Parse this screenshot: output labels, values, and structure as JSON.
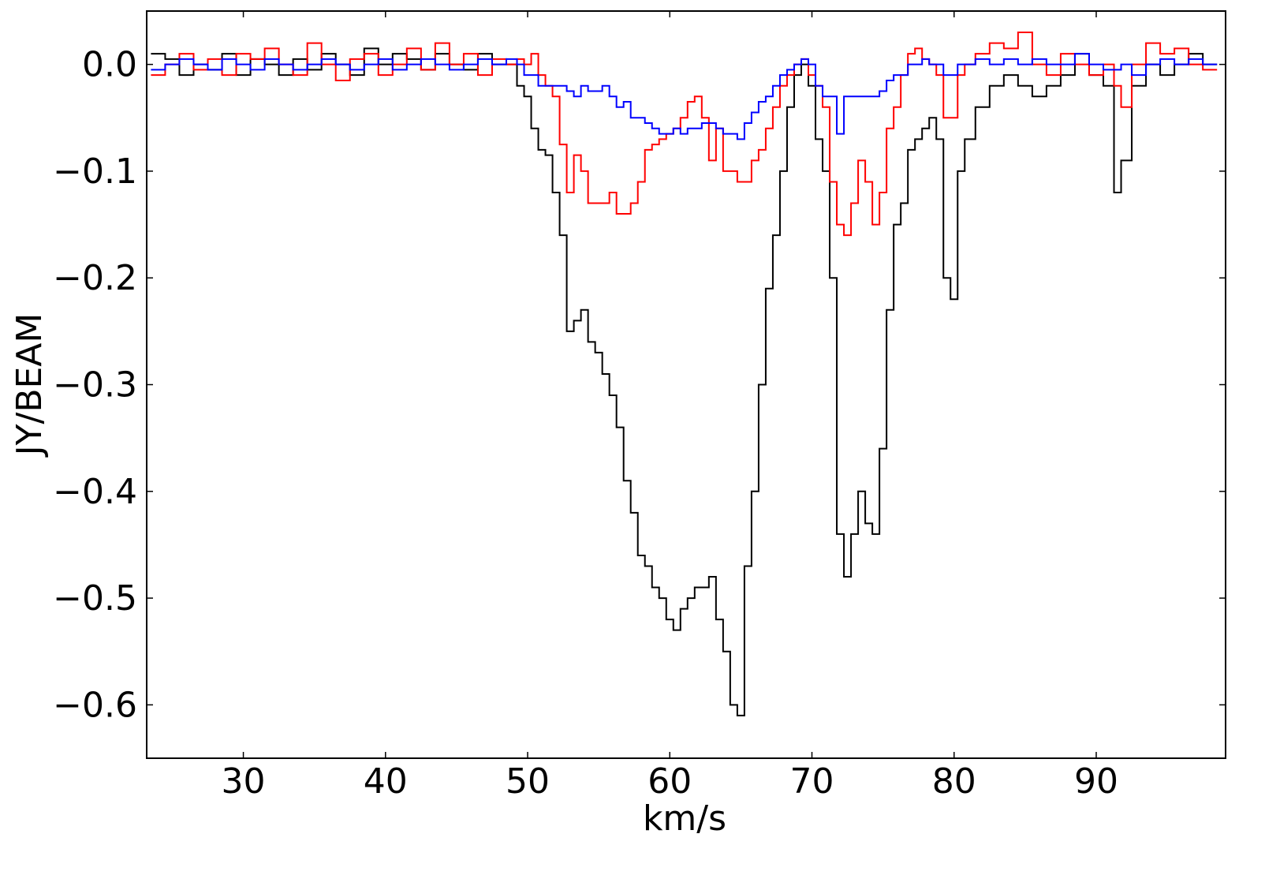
{
  "chart_data": {
    "type": "step",
    "x_label": "km/s",
    "y_label": "JY/BEAM",
    "xlim": [
      23.2,
      99.1
    ],
    "ylim": [
      -0.65,
      0.05
    ],
    "xticks": [
      30,
      40,
      50,
      60,
      70,
      80,
      90
    ],
    "yticks": [
      {
        "value": 0,
        "label": "0.0"
      },
      {
        "value": -0.1,
        "label": "−0.1"
      },
      {
        "value": -0.2,
        "label": "−0.2"
      },
      {
        "value": -0.3,
        "label": "−0.3"
      },
      {
        "value": -0.4,
        "label": "−0.4"
      },
      {
        "value": -0.5,
        "label": "−0.5"
      },
      {
        "value": -0.6,
        "label": "−0.6"
      }
    ],
    "x": [
      24,
      25,
      26,
      27,
      28,
      29,
      30,
      31,
      32,
      33,
      34,
      35,
      36,
      37,
      38,
      39,
      40,
      41,
      42,
      43,
      44,
      45,
      46,
      47,
      48,
      49,
      49.5,
      50,
      50.5,
      51,
      51.5,
      52,
      52.5,
      53,
      53.5,
      54,
      54.5,
      55,
      55.5,
      56,
      56.5,
      57,
      57.5,
      58,
      58.5,
      59,
      59.5,
      60,
      60.5,
      61,
      61.5,
      62,
      62.5,
      63,
      63.5,
      64,
      64.5,
      65,
      65.5,
      66,
      66.5,
      67,
      67.5,
      68,
      68.5,
      69,
      69.5,
      70,
      70.5,
      71,
      71.5,
      72,
      72.5,
      73,
      73.5,
      74,
      74.5,
      75,
      75.5,
      76,
      76.5,
      77,
      77.5,
      78,
      78.5,
      79,
      79.5,
      80,
      80.5,
      81,
      82,
      83,
      84,
      85,
      86,
      87,
      88,
      89,
      90,
      91,
      91.5,
      92,
      93,
      94,
      95,
      96,
      97,
      98
    ],
    "series": [
      {
        "color": "#000000",
        "values": [
          0.01,
          0.005,
          -0.01,
          0.0,
          -0.005,
          0.01,
          -0.01,
          0.005,
          0.0,
          -0.01,
          0.005,
          -0.005,
          0.01,
          0.0,
          -0.01,
          0.015,
          0.0,
          0.01,
          0.005,
          -0.005,
          0.01,
          0.0,
          -0.005,
          0.01,
          0.0,
          0.0,
          -0.02,
          -0.03,
          -0.06,
          -0.08,
          -0.085,
          -0.12,
          -0.16,
          -0.25,
          -0.24,
          -0.23,
          -0.26,
          -0.27,
          -0.29,
          -0.31,
          -0.34,
          -0.39,
          -0.42,
          -0.46,
          -0.47,
          -0.49,
          -0.5,
          -0.52,
          -0.53,
          -0.51,
          -0.5,
          -0.49,
          -0.49,
          -0.48,
          -0.52,
          -0.55,
          -0.6,
          -0.61,
          -0.47,
          -0.4,
          -0.3,
          -0.21,
          -0.16,
          -0.1,
          -0.04,
          -0.01,
          0.0,
          -0.02,
          -0.07,
          -0.1,
          -0.2,
          -0.44,
          -0.48,
          -0.44,
          -0.4,
          -0.43,
          -0.44,
          -0.36,
          -0.23,
          -0.15,
          -0.13,
          -0.08,
          -0.07,
          -0.06,
          -0.05,
          -0.07,
          -0.2,
          -0.22,
          -0.1,
          -0.07,
          -0.04,
          -0.02,
          -0.01,
          -0.02,
          -0.03,
          -0.02,
          -0.01,
          0.01,
          -0.01,
          -0.02,
          -0.12,
          -0.09,
          -0.02,
          0.0,
          -0.01,
          0.0,
          0.01,
          0.0
        ]
      },
      {
        "color": "#ff0000",
        "values": [
          -0.01,
          0.0,
          0.01,
          -0.005,
          0.005,
          -0.01,
          0.01,
          0.005,
          0.015,
          0.0,
          -0.01,
          0.02,
          0.0,
          -0.015,
          0.005,
          0.01,
          -0.01,
          0.0,
          0.015,
          -0.005,
          0.02,
          0.0,
          0.01,
          -0.01,
          0.005,
          0.0,
          0.005,
          0.0,
          0.01,
          -0.01,
          -0.02,
          -0.03,
          -0.075,
          -0.12,
          -0.085,
          -0.1,
          -0.13,
          -0.13,
          -0.13,
          -0.12,
          -0.14,
          -0.14,
          -0.13,
          -0.11,
          -0.08,
          -0.075,
          -0.07,
          -0.065,
          -0.06,
          -0.05,
          -0.035,
          -0.03,
          -0.05,
          -0.09,
          -0.06,
          -0.1,
          -0.1,
          -0.11,
          -0.11,
          -0.09,
          -0.08,
          -0.06,
          -0.04,
          -0.02,
          -0.01,
          0.0,
          0.005,
          -0.01,
          -0.02,
          -0.04,
          -0.11,
          -0.15,
          -0.16,
          -0.13,
          -0.09,
          -0.11,
          -0.15,
          -0.12,
          -0.06,
          -0.04,
          -0.01,
          0.01,
          0.015,
          0.005,
          0.0,
          -0.01,
          -0.05,
          -0.05,
          -0.01,
          0.0,
          0.01,
          0.02,
          0.015,
          0.03,
          0.0,
          -0.01,
          0.01,
          0.0,
          -0.01,
          0.0,
          -0.02,
          -0.04,
          0.0,
          0.02,
          0.01,
          0.015,
          0.0,
          -0.005
        ]
      },
      {
        "color": "#0000ff",
        "values": [
          -0.005,
          0.0,
          0.005,
          0.0,
          -0.005,
          0.005,
          0.0,
          -0.005,
          0.005,
          0.0,
          -0.005,
          0.0,
          0.005,
          0.0,
          -0.005,
          0.0,
          0.005,
          -0.005,
          0.0,
          0.005,
          0.0,
          -0.005,
          0.0,
          0.005,
          0.0,
          0.005,
          0.0,
          -0.01,
          -0.01,
          -0.02,
          -0.02,
          -0.02,
          -0.02,
          -0.025,
          -0.03,
          -0.02,
          -0.025,
          -0.025,
          -0.02,
          -0.03,
          -0.04,
          -0.035,
          -0.05,
          -0.05,
          -0.055,
          -0.06,
          -0.065,
          -0.065,
          -0.06,
          -0.065,
          -0.06,
          -0.06,
          -0.055,
          -0.055,
          -0.06,
          -0.065,
          -0.065,
          -0.07,
          -0.055,
          -0.045,
          -0.035,
          -0.03,
          -0.02,
          -0.01,
          -0.005,
          0.0,
          0.005,
          0.0,
          -0.02,
          -0.03,
          -0.03,
          -0.065,
          -0.03,
          -0.03,
          -0.03,
          -0.03,
          -0.03,
          -0.025,
          -0.015,
          -0.01,
          -0.01,
          0.0,
          0.0,
          0.005,
          0.0,
          0.0,
          -0.01,
          -0.01,
          0.0,
          0.0,
          0.005,
          0.0,
          0.005,
          0.0,
          0.005,
          0.0,
          0.0,
          0.01,
          0.0,
          -0.005,
          -0.005,
          0.0,
          -0.01,
          0.0,
          0.005,
          0.0,
          0.005,
          0.0
        ]
      }
    ]
  }
}
